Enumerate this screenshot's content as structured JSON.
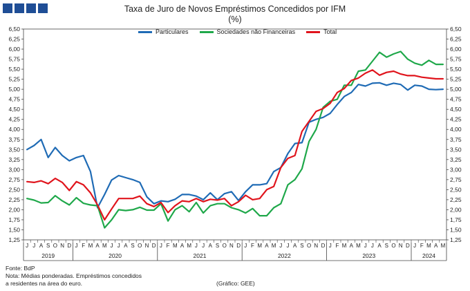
{
  "header": {
    "title": "Taxa de Juro de Novos Empréstimos Concedidos por IFM",
    "subtitle": "(%)"
  },
  "footer": {
    "source": "Fonte: BdP",
    "note_line1": "Nota: Médias ponderadas.  Empréstimos concedidos",
    "note_line2": "a residentes na área do euro.",
    "credit": "(Gráfico: GEE)"
  },
  "colors": {
    "logo": "#1f4e96",
    "particulares": "#1f6bb5",
    "snf": "#1fa84a",
    "total": "#e0141c"
  },
  "chart_data": {
    "type": "line",
    "title": "Taxa de Juro de Novos Empréstimos Concedidos por IFM",
    "subtitle": "(%)",
    "ylim": [
      1.25,
      6.5
    ],
    "ytick_step": 0.25,
    "yticks": [
      "1,25",
      "1,50",
      "1,75",
      "2,00",
      "2,25",
      "2,50",
      "2,75",
      "3,00",
      "3,25",
      "3,50",
      "3,75",
      "4,00",
      "4,25",
      "4,50",
      "4,75",
      "5,00",
      "5,25",
      "5,50",
      "5,75",
      "6,00",
      "6,25",
      "6,50"
    ],
    "month_labels": [
      "J",
      "J",
      "A",
      "S",
      "O",
      "N",
      "D",
      "J",
      "F",
      "M",
      "A",
      "M",
      "J",
      "J",
      "A",
      "S",
      "O",
      "N",
      "D",
      "J",
      "F",
      "M",
      "A",
      "M",
      "J",
      "J",
      "A",
      "S",
      "O",
      "N",
      "D",
      "J",
      "F",
      "M",
      "A",
      "M",
      "J",
      "J",
      "A",
      "S",
      "O",
      "N",
      "D",
      "J",
      "F",
      "M",
      "A",
      "M",
      "J",
      "J",
      "A",
      "S",
      "O",
      "N",
      "D",
      "J",
      "F",
      "M",
      "A",
      "M"
    ],
    "years": [
      {
        "label": "2019",
        "start": 0,
        "end": 6
      },
      {
        "label": "2020",
        "start": 7,
        "end": 18
      },
      {
        "label": "2021",
        "start": 19,
        "end": 30
      },
      {
        "label": "2022",
        "start": 31,
        "end": 42
      },
      {
        "label": "2023",
        "start": 43,
        "end": 54
      },
      {
        "label": "2024",
        "start": 55,
        "end": 59
      }
    ],
    "grid": false,
    "legend_position": "top",
    "series": [
      {
        "name": "Particulares",
        "color": "#1f6bb5",
        "values": [
          3.5,
          3.6,
          3.75,
          3.3,
          3.55,
          3.35,
          3.22,
          3.3,
          3.35,
          2.95,
          2.05,
          2.38,
          2.74,
          2.85,
          2.8,
          2.75,
          2.68,
          2.32,
          2.15,
          2.22,
          2.2,
          2.26,
          2.38,
          2.38,
          2.34,
          2.25,
          2.42,
          2.25,
          2.4,
          2.45,
          2.23,
          2.45,
          2.62,
          2.62,
          2.65,
          2.95,
          3.05,
          3.4,
          3.65,
          3.67,
          4.18,
          4.25,
          4.3,
          4.4,
          4.62,
          4.82,
          4.92,
          5.12,
          5.08,
          5.15,
          5.16,
          5.1,
          5.15,
          5.12,
          4.98,
          5.1,
          5.08,
          5.0,
          4.99,
          5.0
        ]
      },
      {
        "name": "Sociedades não Financeiras",
        "color": "#1fa84a",
        "values": [
          2.28,
          2.24,
          2.17,
          2.18,
          2.35,
          2.22,
          2.12,
          2.3,
          2.16,
          2.12,
          2.1,
          1.55,
          1.75,
          2.0,
          1.98,
          2.0,
          2.06,
          1.99,
          1.99,
          2.15,
          1.72,
          2.0,
          2.1,
          1.95,
          2.18,
          1.92,
          2.1,
          2.15,
          2.15,
          2.05,
          2.0,
          1.92,
          2.03,
          1.85,
          1.85,
          2.05,
          2.15,
          2.62,
          2.75,
          3.02,
          3.7,
          4.0,
          4.55,
          4.7,
          4.75,
          5.1,
          5.1,
          5.45,
          5.48,
          5.7,
          5.92,
          5.8,
          5.88,
          5.94,
          5.75,
          5.65,
          5.6,
          5.72,
          5.62,
          5.62
        ]
      },
      {
        "name": "Total",
        "color": "#e0141c",
        "values": [
          2.7,
          2.68,
          2.72,
          2.65,
          2.78,
          2.68,
          2.48,
          2.7,
          2.62,
          2.42,
          2.12,
          1.75,
          2.02,
          2.28,
          2.28,
          2.28,
          2.34,
          2.15,
          2.08,
          2.18,
          1.93,
          2.1,
          2.22,
          2.2,
          2.28,
          2.2,
          2.26,
          2.24,
          2.28,
          2.1,
          2.2,
          2.36,
          2.25,
          2.28,
          2.5,
          2.58,
          3.05,
          3.28,
          3.35,
          3.95,
          4.2,
          4.45,
          4.52,
          4.65,
          4.92,
          5.02,
          5.22,
          5.28,
          5.4,
          5.48,
          5.35,
          5.42,
          5.45,
          5.38,
          5.34,
          5.34,
          5.3,
          5.28,
          5.26,
          5.26
        ]
      }
    ]
  }
}
